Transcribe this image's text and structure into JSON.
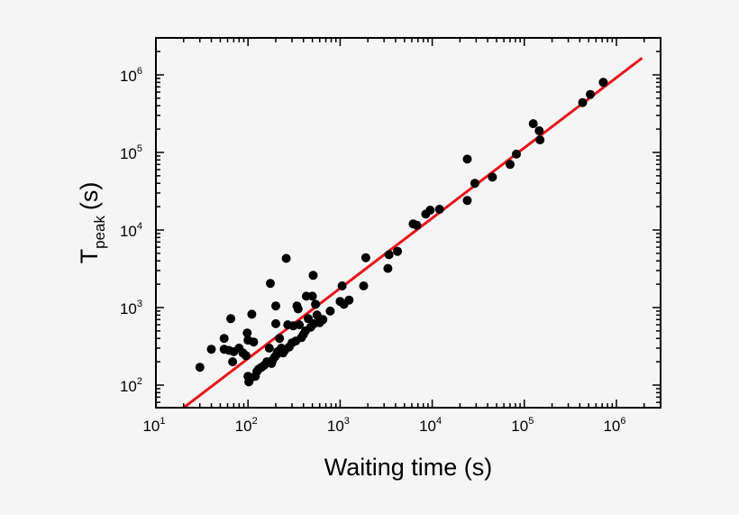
{
  "chart_data": {
    "type": "scatter",
    "title": "",
    "xlabel": "Waiting time (s)",
    "ylabel": "T_peak (s)",
    "ylabel_main": "T",
    "ylabel_sub": "peak",
    "ylabel_unit": "(s)",
    "xscale": "log",
    "yscale": "log",
    "xlim": [
      10,
      3000000
    ],
    "ylim": [
      50,
      2500000
    ],
    "grid": false,
    "legend": null,
    "x_ticks": [
      {
        "base": "10",
        "exp": "1",
        "value": 10
      },
      {
        "base": "10",
        "exp": "2",
        "value": 100
      },
      {
        "base": "10",
        "exp": "3",
        "value": 1000
      },
      {
        "base": "10",
        "exp": "4",
        "value": 10000
      },
      {
        "base": "10",
        "exp": "5",
        "value": 100000
      },
      {
        "base": "10",
        "exp": "6",
        "value": 1000000
      }
    ],
    "y_ticks": [
      {
        "base": "10",
        "exp": "2",
        "value": 100
      },
      {
        "base": "10",
        "exp": "3",
        "value": 1000
      },
      {
        "base": "10",
        "exp": "4",
        "value": 10000
      },
      {
        "base": "10",
        "exp": "5",
        "value": 100000
      },
      {
        "base": "10",
        "exp": "6",
        "value": 1000000
      }
    ],
    "colors": {
      "points": "#000000",
      "fit_line": "#e8141b",
      "axes": "#000000",
      "background": "#f5f5f5"
    },
    "series": [
      {
        "name": "data",
        "kind": "scatter",
        "points": [
          [
            30,
            170
          ],
          [
            40,
            290
          ],
          [
            55,
            400
          ],
          [
            55,
            290
          ],
          [
            62,
            280
          ],
          [
            65,
            720
          ],
          [
            68,
            200
          ],
          [
            70,
            270
          ],
          [
            80,
            300
          ],
          [
            88,
            260
          ],
          [
            95,
            240
          ],
          [
            98,
            470
          ],
          [
            100,
            380
          ],
          [
            100,
            130
          ],
          [
            102,
            110
          ],
          [
            105,
            120
          ],
          [
            110,
            820
          ],
          [
            115,
            360
          ],
          [
            120,
            130
          ],
          [
            125,
            150
          ],
          [
            130,
            160
          ],
          [
            140,
            170
          ],
          [
            150,
            180
          ],
          [
            160,
            200
          ],
          [
            170,
            300
          ],
          [
            175,
            2050
          ],
          [
            180,
            190
          ],
          [
            185,
            210
          ],
          [
            195,
            230
          ],
          [
            200,
            620
          ],
          [
            200,
            1050
          ],
          [
            205,
            250
          ],
          [
            210,
            270
          ],
          [
            220,
            400
          ],
          [
            230,
            300
          ],
          [
            240,
            260
          ],
          [
            250,
            280
          ],
          [
            260,
            4300
          ],
          [
            270,
            600
          ],
          [
            280,
            310
          ],
          [
            300,
            350
          ],
          [
            310,
            580
          ],
          [
            330,
            370
          ],
          [
            340,
            1050
          ],
          [
            350,
            960
          ],
          [
            360,
            600
          ],
          [
            380,
            410
          ],
          [
            400,
            450
          ],
          [
            420,
            500
          ],
          [
            430,
            1400
          ],
          [
            450,
            720
          ],
          [
            480,
            560
          ],
          [
            500,
            1400
          ],
          [
            510,
            2600
          ],
          [
            520,
            620
          ],
          [
            540,
            1100
          ],
          [
            560,
            800
          ],
          [
            600,
            640
          ],
          [
            650,
            700
          ],
          [
            780,
            900
          ],
          [
            1000,
            1200
          ],
          [
            1050,
            1900
          ],
          [
            1100,
            1100
          ],
          [
            1250,
            1250
          ],
          [
            1800,
            1900
          ],
          [
            1900,
            4400
          ],
          [
            3300,
            3200
          ],
          [
            3400,
            4800
          ],
          [
            4200,
            5300
          ],
          [
            6200,
            12000
          ],
          [
            6800,
            11500
          ],
          [
            8500,
            16000
          ],
          [
            9500,
            18000
          ],
          [
            12000,
            18500
          ],
          [
            24000,
            24000
          ],
          [
            24000,
            82000
          ],
          [
            29000,
            40000
          ],
          [
            45000,
            48000
          ],
          [
            70000,
            70000
          ],
          [
            82000,
            95000
          ],
          [
            125000,
            235000
          ],
          [
            145000,
            190000
          ],
          [
            148000,
            145000
          ],
          [
            430000,
            440000
          ],
          [
            520000,
            560000
          ],
          [
            720000,
            800000
          ]
        ]
      },
      {
        "name": "fit",
        "kind": "line",
        "points": [
          [
            20,
            50
          ],
          [
            1900000,
            1650000
          ]
        ]
      }
    ]
  }
}
